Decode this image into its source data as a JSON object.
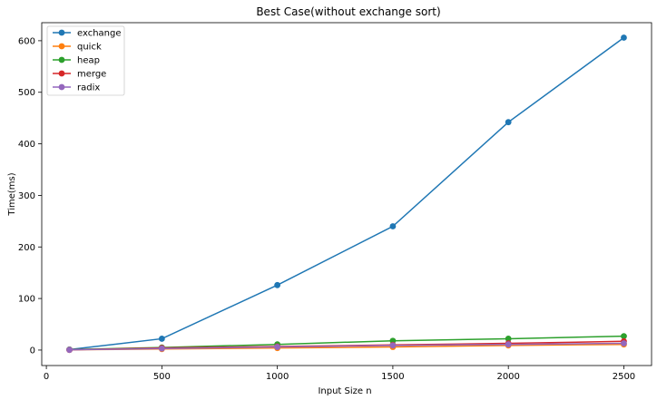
{
  "chart_data": {
    "type": "line",
    "title": "Best Case(without exchange sort)",
    "xlabel": "Input Size n",
    "ylabel": "Time(ms)",
    "xlim": [
      -20,
      2620
    ],
    "ylim": [
      -30,
      635
    ],
    "x_ticks": [
      0,
      500,
      1000,
      1500,
      2000,
      2500
    ],
    "y_ticks": [
      0,
      100,
      200,
      300,
      400,
      500,
      600
    ],
    "grid": false,
    "legend_position": "top-left",
    "marker": "circle",
    "x": [
      100,
      500,
      1000,
      1500,
      2000,
      2500
    ],
    "series": [
      {
        "name": "exchange",
        "color": "#1f77b4",
        "values": [
          1,
          22,
          126,
          240,
          442,
          606
        ]
      },
      {
        "name": "quick",
        "color": "#ff7f0e",
        "values": [
          0.5,
          2,
          4,
          6,
          9,
          11
        ]
      },
      {
        "name": "heap",
        "color": "#2ca02c",
        "values": [
          1,
          5,
          11,
          18,
          22,
          27
        ]
      },
      {
        "name": "merge",
        "color": "#d62728",
        "values": [
          0.5,
          4,
          7,
          10,
          13,
          17
        ]
      },
      {
        "name": "radix",
        "color": "#9467bd",
        "values": [
          0.5,
          3,
          6,
          9,
          11,
          13
        ]
      }
    ]
  }
}
